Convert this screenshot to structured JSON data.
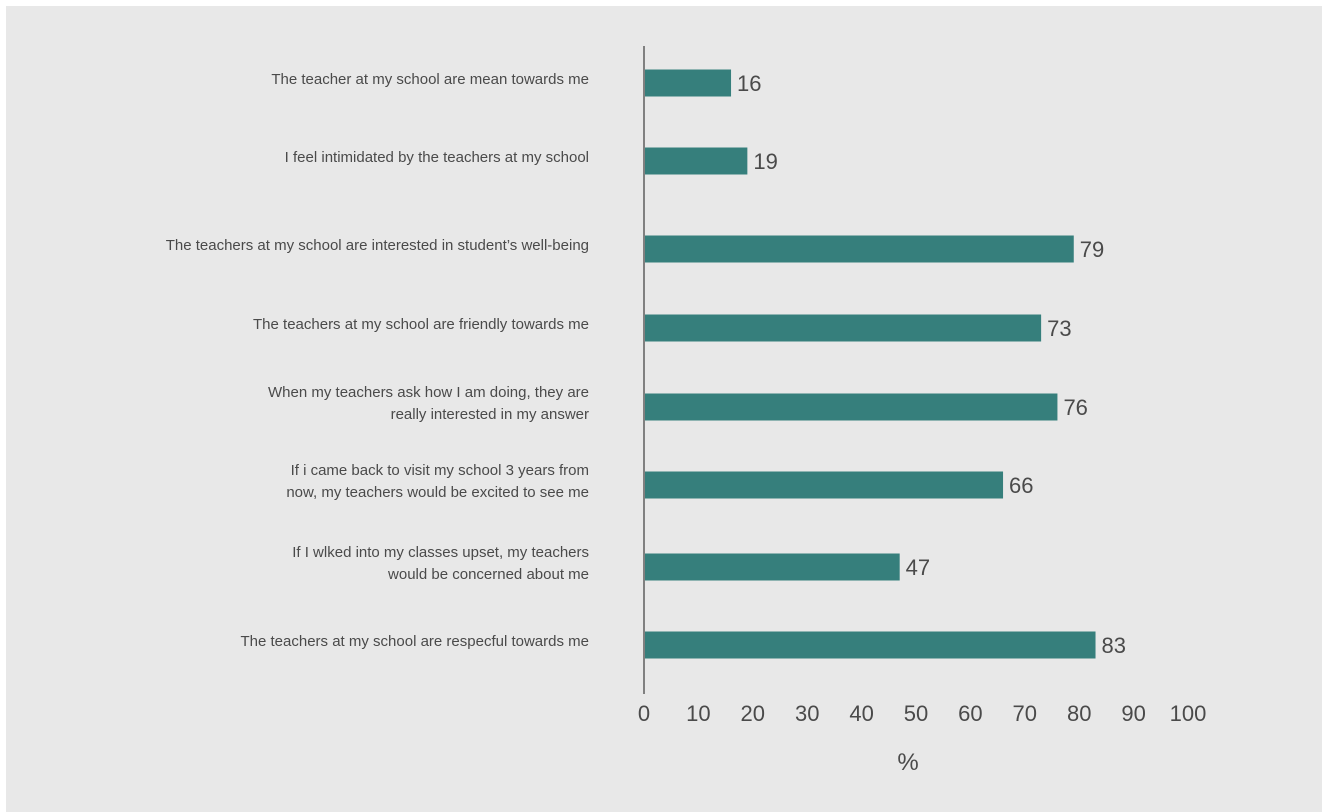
{
  "chart_data": {
    "type": "bar",
    "orientation": "horizontal",
    "categories": [
      "The teacher at my school are mean towards me",
      "I feel intimidated by the teachers at my school",
      "The teachers at my school are interested in student’s well-being",
      "The teachers at my school are friendly towards me",
      "When my teachers ask how I am doing, they are really interested in my answer",
      "If i came back to visit my school 3 years from now, my teachers would be excited to see me",
      "If I wlked into my classes upset, my teachers would be concerned about me",
      "The teachers at my school are respecful towards me"
    ],
    "category_lines": [
      [
        "The teacher at my school are mean towards me"
      ],
      [
        "I feel intimidated by the teachers at my school"
      ],
      [
        "The teachers at my school are interested in student’s well-being"
      ],
      [
        "The teachers at my school are friendly towards me"
      ],
      [
        "When my teachers ask how I am doing, they are",
        "really interested in my answer"
      ],
      [
        "If i came back to visit my school 3 years from",
        "now, my teachers would be excited to see me"
      ],
      [
        "If I wlked into my classes upset, my teachers",
        "would be concerned about me"
      ],
      [
        "The teachers at my school are respecful towards me"
      ]
    ],
    "values": [
      16,
      19,
      79,
      73,
      76,
      66,
      47,
      83
    ],
    "data_labels": [
      "16",
      "19",
      "79",
      "73",
      "76",
      "66",
      "47",
      "83"
    ],
    "xlim": [
      0,
      100
    ],
    "xticks": [
      "0",
      "10",
      "20",
      "30",
      "40",
      "50",
      "60",
      "70",
      "80",
      "90",
      "100"
    ],
    "xlabel": "%",
    "title": "",
    "ylabel": "",
    "grid": false,
    "legend": "none",
    "bar_color": "#367f7c",
    "background_color": "#e8e8e8",
    "axis_color": "#808080",
    "text_color": "#4a4a4a"
  }
}
